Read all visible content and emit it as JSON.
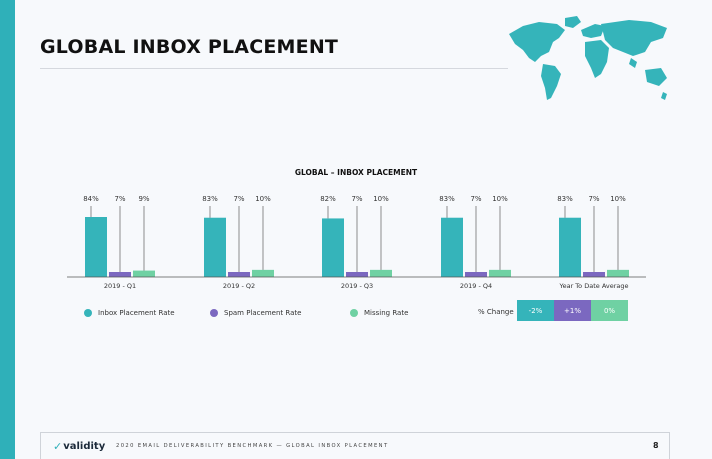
{
  "page": {
    "title": "GLOBAL INBOX PLACEMENT",
    "footer_text": "2020 EMAIL DELIVERABILITY BENCHMARK — GLOBAL INBOX PLACEMENT",
    "page_number": "8",
    "brand": "validity"
  },
  "colors": {
    "accent": "#2fb0b9",
    "inbox": "#35b4ba",
    "spam": "#7b68c0",
    "missing": "#6fd1a3"
  },
  "chart_data": {
    "type": "bar",
    "title": "GLOBAL – INBOX PLACEMENT",
    "categories": [
      "2019 - Q1",
      "2019 - Q2",
      "2019 - Q3",
      "2019 - Q4",
      "Year To Date Average"
    ],
    "series": [
      {
        "name": "Inbox Placement Rate",
        "values": [
          84,
          83,
          82,
          83,
          83
        ],
        "labels": [
          "84%",
          "83%",
          "82%",
          "83%",
          "83%"
        ]
      },
      {
        "name": "Spam Placement Rate",
        "values": [
          7,
          7,
          7,
          7,
          7
        ],
        "labels": [
          "7%",
          "7%",
          "7%",
          "7%",
          "7%"
        ]
      },
      {
        "name": "Missing Rate",
        "values": [
          9,
          10,
          10,
          10,
          10
        ],
        "labels": [
          "9%",
          "10%",
          "10%",
          "10%",
          "10%"
        ]
      }
    ],
    "ylim": [
      0,
      100
    ],
    "legend_position": "bottom",
    "grid": false
  },
  "percent_change": {
    "label": "% Change",
    "values": [
      "-2%",
      "+1%",
      "0%"
    ]
  }
}
